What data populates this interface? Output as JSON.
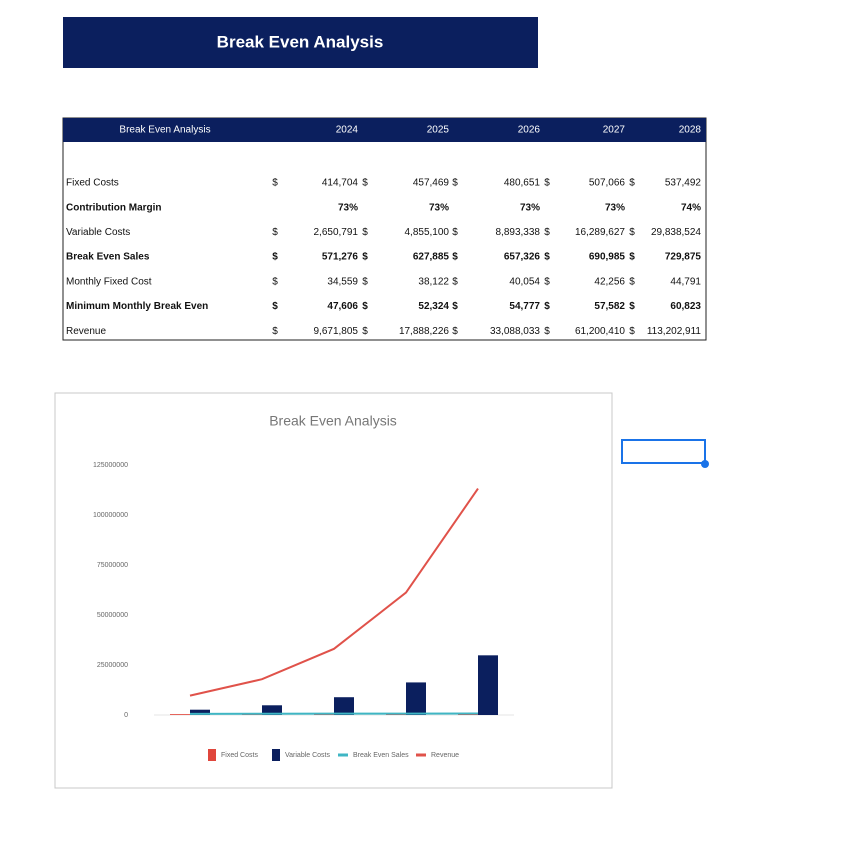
{
  "header": {
    "title": "Break Even Analysis"
  },
  "table": {
    "title": "Break Even Analysis",
    "columns": [
      "2024",
      "2025",
      "2026",
      "2027",
      "2028"
    ],
    "rows": [
      {
        "label": "Fixed Costs",
        "currency": "$",
        "values": [
          "414,704",
          "457,469",
          "480,651",
          "507,066",
          "537,492"
        ]
      },
      {
        "label": "Contribution Margin",
        "bold": true,
        "values": [
          "73%",
          "73%",
          "73%",
          "73%",
          "74%"
        ]
      },
      {
        "label": "Variable Costs",
        "currency": "$",
        "values": [
          "2,650,791",
          "4,855,100",
          "8,893,338",
          "16,289,627",
          "29,838,524"
        ]
      },
      {
        "label": "Break Even Sales",
        "bold": true,
        "currency": "$",
        "values": [
          "571,276",
          "627,885",
          "657,326",
          "690,985",
          "729,875"
        ]
      },
      {
        "label": "Monthly Fixed Cost",
        "currency": "$",
        "values": [
          "34,559",
          "38,122",
          "40,054",
          "42,256",
          "44,791"
        ]
      },
      {
        "label": "Minimum Monthly Break Even",
        "bold": true,
        "currency": "$",
        "values": [
          "47,606",
          "52,324",
          "54,777",
          "57,582",
          "60,823"
        ]
      },
      {
        "label": "Revenue",
        "currency": "$",
        "values": [
          "9,671,805",
          "17,888,226",
          "33,088,033",
          "61,200,410",
          "113,202,911"
        ]
      }
    ]
  },
  "chart_data": {
    "type": "bar-line",
    "title": "Break Even Analysis",
    "categories": [
      null,
      null,
      null,
      null,
      null
    ],
    "series": [
      {
        "name": "Fixed Costs",
        "type": "bar",
        "color": "#e0463c",
        "values": [
          414704,
          457469,
          480651,
          507066,
          537492
        ]
      },
      {
        "name": "Variable Costs",
        "type": "bar",
        "color": "#0b1f5e",
        "values": [
          2650791,
          4855100,
          8893338,
          16289627,
          29838524
        ]
      },
      {
        "name": "Break Even Sales",
        "type": "line",
        "color": "#3fb6c4",
        "values": [
          571276,
          627885,
          657326,
          690985,
          729875
        ]
      },
      {
        "name": "Revenue",
        "type": "line",
        "color": "#e0524a",
        "values": [
          9671805,
          17888226,
          33088033,
          61200410,
          113202911
        ]
      }
    ],
    "ylim": [
      0,
      125000000
    ],
    "yticks": [
      0,
      25000000,
      50000000,
      75000000,
      100000000,
      125000000
    ],
    "legend": "bottom"
  }
}
